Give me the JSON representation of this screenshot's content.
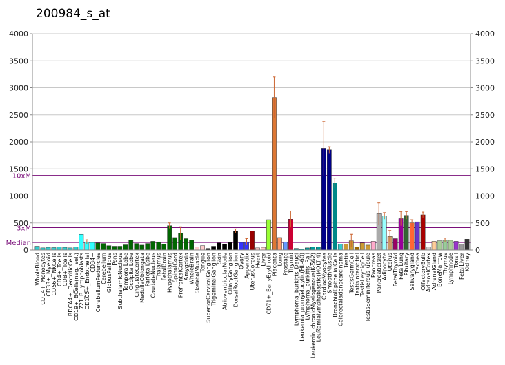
{
  "chart_data": {
    "type": "bar",
    "title": "200984_s_at",
    "xlabel": "",
    "ylabel": "",
    "ylim": [
      0,
      4000
    ],
    "yticks": [
      0,
      500,
      1000,
      1500,
      2000,
      2500,
      3000,
      3500,
      4000
    ],
    "y2lim": [
      0,
      4000
    ],
    "y2ticks": [
      0,
      500,
      1000,
      1500,
      2000,
      2500,
      3000,
      3500,
      4000
    ],
    "grid": true,
    "legend": "none",
    "reference_lines": [
      {
        "label": "10xM",
        "value": 1380,
        "color": "#7a0f7a"
      },
      {
        "label": "3xM",
        "value": 414,
        "color": "#7a0f7a"
      },
      {
        "label": "Median",
        "value": 138,
        "color": "#7a0f7a"
      }
    ],
    "categories": [
      "WholeBlood",
      "CD14+_Monocytes",
      "CD33+_Myeloid",
      "CD56+_NKCells",
      "CD4+_Tcells",
      "CD8+_Tcells",
      "BDCA4+_DentriticCells",
      "CD19+_BCells(neg._sel.)",
      "721_B_lymphoblasts",
      "CD105+_Endothelial",
      "CD34+",
      "CerebellumPeduncles",
      "Cerebellum",
      "GlobusPallidus",
      "Pons",
      "SubthalamicNucleus",
      "TemporalLobe",
      "OccipitalLobe",
      "CingulateCortex",
      "MedullaOblongata",
      "ParietalLobe",
      "CaudateNucleus",
      "Thalamus",
      "FetalBrain",
      "Hypothalamus",
      "SpinalCord",
      "PrefrontalCortex",
      "Amygdala",
      "WholeBrain",
      "SkeletalMuscle",
      "Tongue",
      "SuperiorCervicalGanglion",
      "TrigeminalGanglion",
      "Skin",
      "AtrioventricularNode",
      "CiliaryGanglion",
      "DorsalRootGanglion",
      "Ovary",
      "Appendix",
      "UterusCorpus",
      "Heart",
      "Liver",
      "CD71+_EarlyErythroid",
      "Placenta",
      "Lung",
      "Prostate",
      "Thyroid",
      "Lymphoma_burkitts_Daudi",
      "Leukemia_promyelocytic(HL-60)",
      "Lymphoma_burkitts_Raji",
      "Leukemia_chronicMyelogenous(K-562)",
      "Leukemialymphoblastic(MOLT-4)",
      "CardiacMyocytes",
      "SmoothMuscle",
      "BronchialEpithelialCells",
      "Colorectaladenocarcinoma",
      "Testis",
      "TestisGermCell",
      "TestisInterstitial",
      "TestisLeydigCell",
      "TestisSeminiferousTubule",
      "Pancreas",
      "PancreaticIslet",
      "Adipocyte",
      "Uterus",
      "FetalThyroid",
      "FetalLung",
      "Pituitary",
      "Salivarygland",
      "Trachea",
      "OlfactoryBulb",
      "AdrenalCortex",
      "AdrenalGland",
      "BoneMarrow",
      "Thymus",
      "Lymphnode",
      "Tonsil",
      "FetalLiver",
      "Kidney"
    ],
    "labels_shown": [
      "WholeBlood",
      "CD14+_Monocytes",
      "CD33+_Myeloid",
      "CD56+_NKCells",
      "CD4+_Tcells",
      "CD8+_Tcells",
      "BDCA4+_DentriticCells",
      "CD19+_BCells(neg._sel.)",
      "721_B_lymphoblasts",
      "CD105+_Endothelial",
      "CD34+",
      "CerebellumPeduncles",
      "Cerebellum",
      "GlobusPallidus",
      "Pons",
      "SubthalamicNucleus",
      "TemporalLobe",
      "OccipitalLobe",
      "CingulateCortex",
      "MedullaOblongata",
      "ParietalLobe",
      "CaudateNucleus",
      "Thalamus",
      "FetalBrain",
      "Hypothalamus",
      "SpinalCord",
      "PrefrontalCortex",
      "Amygdala",
      "WholeBrain",
      "SkeletalMuscle",
      "Tongue",
      "SuperiorCervicalGanglion",
      "TrigeminalGanglion",
      "Skin",
      "AtrioventricularNode",
      "CiliaryGanglion",
      "DorsalRootGanglion",
      "Ovary",
      "Appendix",
      "UterusCorpus",
      "Heart",
      "Liver",
      "CD71+_EarlyErythroid",
      "Placenta",
      "Lung",
      "Prostate",
      "Thyroid",
      "Lymphoma_burkitts_Daudi",
      "Leukemia_promyelocytic(HL-60)",
      "Lymphoma_burkitts_Raji",
      "Leukemia_chronicMyelogenous(K-562)",
      "Leukemialymphoblastic(MOLT-4)",
      "CardiacMyocytes",
      "SmoothMuscle",
      "BronchialEpithelialCells",
      "Colorectaladenocarcinoma",
      "Testis",
      "TestisGermCell",
      "TestisInterstitial",
      "TestisLeydigCell",
      "TestisSeminiferousTubule",
      "Pancreas",
      "PancreaticIslet",
      "Adipocyte",
      "Uterus",
      "FetalThyroid",
      "FetalLung",
      "Pituitary",
      "Salivarygland",
      "Trachea",
      "OlfactoryBulb",
      "AdrenalCortex",
      "AdrenalGland",
      "BoneMarrow",
      "Thymus",
      "Lymphnode",
      "Tonsil",
      "FetalLiver",
      "Kidney"
    ],
    "values": [
      70,
      40,
      50,
      45,
      60,
      50,
      40,
      55,
      290,
      150,
      140,
      130,
      120,
      80,
      70,
      70,
      95,
      180,
      120,
      90,
      120,
      160,
      150,
      110,
      450,
      230,
      310,
      210,
      180,
      60,
      80,
      30,
      70,
      130,
      110,
      140,
      350,
      140,
      150,
      350,
      40,
      50,
      560,
      2820,
      230,
      150,
      570,
      30,
      20,
      40,
      60,
      60,
      1880,
      1850,
      1240,
      110,
      110,
      170,
      60,
      130,
      90,
      160,
      670,
      630,
      250,
      210,
      580,
      640,
      500,
      520,
      650,
      60,
      160,
      170,
      180,
      180,
      160,
      110,
      200
    ],
    "errors": [
      0,
      0,
      0,
      0,
      0,
      0,
      0,
      0,
      0,
      40,
      0,
      0,
      0,
      0,
      0,
      0,
      0,
      0,
      0,
      0,
      0,
      0,
      0,
      0,
      50,
      0,
      120,
      0,
      0,
      0,
      0,
      0,
      0,
      0,
      0,
      0,
      40,
      0,
      60,
      0,
      0,
      0,
      0,
      380,
      0,
      0,
      150,
      0,
      0,
      0,
      0,
      0,
      500,
      60,
      90,
      0,
      0,
      120,
      0,
      0,
      0,
      0,
      200,
      60,
      110,
      0,
      130,
      70,
      60,
      0,
      50,
      0,
      0,
      0,
      40,
      0,
      0,
      0,
      0
    ],
    "colors": [
      "#33cccc",
      "#33cccc",
      "#33cccc",
      "#33cccc",
      "#33cccc",
      "#33cccc",
      "#33cccc",
      "#33cccc",
      "#33ffff",
      "#33ffff",
      "#33ffff",
      "#006600",
      "#006600",
      "#006600",
      "#006600",
      "#006600",
      "#006600",
      "#006600",
      "#006600",
      "#006600",
      "#006600",
      "#006600",
      "#006600",
      "#006600",
      "#006600",
      "#006600",
      "#006600",
      "#006600",
      "#006600",
      "#ffcccc",
      "#ffcccc",
      "#000000",
      "#000000",
      "#000000",
      "#000000",
      "#000000",
      "#000000",
      "#3333ff",
      "#3333ff",
      "#990000",
      "#ffcccc",
      "#ffcccc",
      "#99ff33",
      "#dd7733",
      "#ff9966",
      "#6699ff",
      "#cc0033",
      "#009999",
      "#009999",
      "#009999",
      "#009999",
      "#009999",
      "#000088",
      "#000088",
      "#008888",
      "#33cccc",
      "#cc9933",
      "#cc9933",
      "#996600",
      "#cc9933",
      "#cc9933",
      "#ffaacc",
      "#aaaaaa",
      "#99ffff",
      "#cc9966",
      "#990066",
      "#990099",
      "#336633",
      "#ff6633",
      "#6633cc",
      "#aa0000",
      "#cccccc",
      "#ffcc99",
      "#aacc99",
      "#99cc99",
      "#aacc99",
      "#9933cc",
      "#999999",
      "#333333"
    ]
  }
}
